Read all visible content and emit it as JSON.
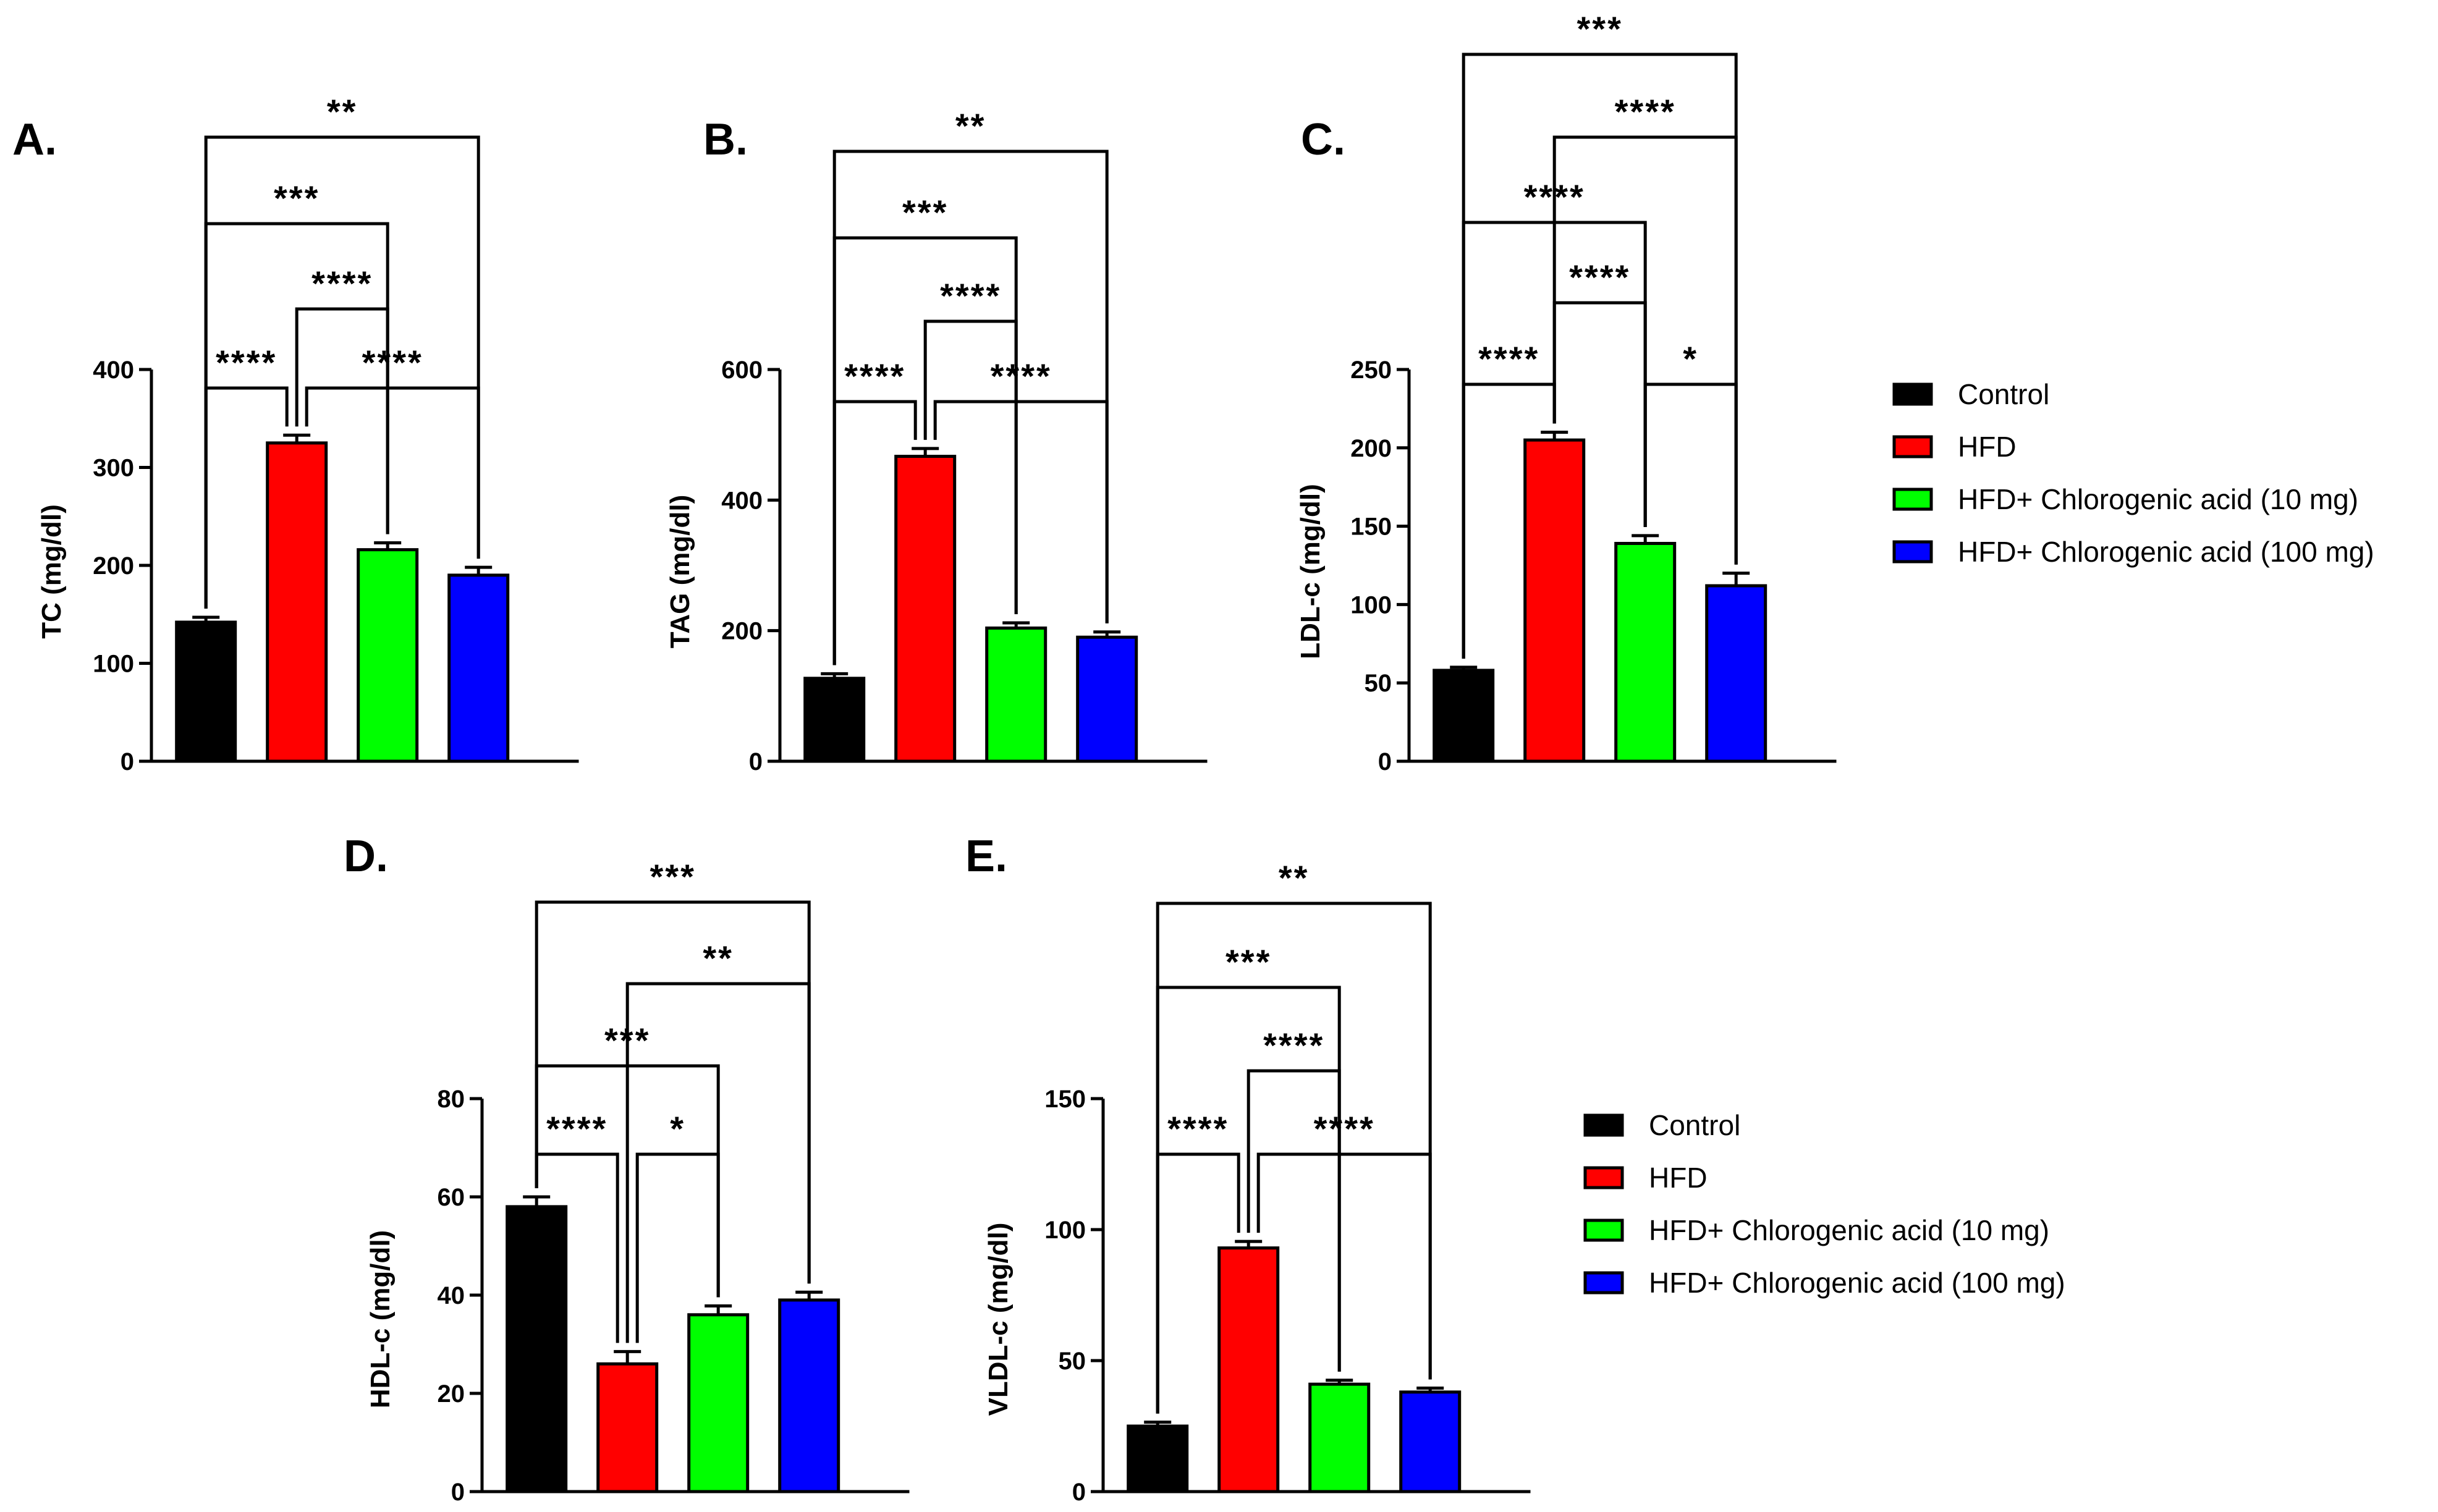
{
  "figure": {
    "legends": [
      {
        "entries": [
          "Control",
          "HFD",
          "HFD+ Chlorogenic acid (10 mg)",
          "HFD+ Chlorogenic acid (100 mg)"
        ]
      },
      {
        "entries": [
          "Control",
          "HFD",
          "HFD+ Chlorogenic acid (10 mg)",
          "HFD+ Chlorogenic acid (100 mg)"
        ]
      }
    ]
  },
  "colors": {
    "Control": "#000000",
    "HFD": "#ff0000",
    "HFD+ Chlorogenic acid (10 mg)": "#00ff00",
    "HFD+ Chlorogenic acid (100 mg)": "#0000ff"
  },
  "chart_data": [
    {
      "type": "bar",
      "panel": "A.",
      "ylabel": "TC (mg/dl)",
      "ylim": [
        0,
        400
      ],
      "yticks": [
        0,
        100,
        200,
        300,
        400
      ],
      "categories": [
        "Control",
        "HFD",
        "HFD+ Chlorogenic acid (10 mg)",
        "HFD+ Chlorogenic acid (100 mg)"
      ],
      "values": [
        142,
        325,
        216,
        190
      ],
      "errors": [
        5,
        8,
        7,
        8
      ],
      "significance": [
        {
          "from": 0,
          "to": 1,
          "label": "****"
        },
        {
          "from": 1,
          "to": 3,
          "label": "****"
        },
        {
          "from": 1,
          "to": 2,
          "label": "****"
        },
        {
          "from": 0,
          "to": 2,
          "label": "***"
        },
        {
          "from": 0,
          "to": 3,
          "label": "**"
        }
      ]
    },
    {
      "type": "bar",
      "panel": "B.",
      "ylabel": "TAG (mg/dl)",
      "ylim": [
        0,
        600
      ],
      "yticks": [
        0,
        200,
        400,
        600
      ],
      "categories": [
        "Control",
        "HFD",
        "HFD+ Chlorogenic acid (10 mg)",
        "HFD+ Chlorogenic acid (100 mg)"
      ],
      "values": [
        127,
        467,
        204,
        190
      ],
      "errors": [
        7,
        12,
        8,
        8
      ],
      "significance": [
        {
          "from": 0,
          "to": 1,
          "label": "****"
        },
        {
          "from": 1,
          "to": 3,
          "label": "****"
        },
        {
          "from": 1,
          "to": 2,
          "label": "****"
        },
        {
          "from": 0,
          "to": 2,
          "label": "***"
        },
        {
          "from": 0,
          "to": 3,
          "label": "**"
        }
      ]
    },
    {
      "type": "bar",
      "panel": "C.",
      "ylabel": "LDL-c (mg/dl)",
      "ylim": [
        0,
        250
      ],
      "yticks": [
        0,
        50,
        100,
        150,
        200,
        250
      ],
      "categories": [
        "Control",
        "HFD",
        "HFD+ Chlorogenic acid (10 mg)",
        "HFD+ Chlorogenic acid (100 mg)"
      ],
      "values": [
        58,
        205,
        139,
        112
      ],
      "errors": [
        2,
        5,
        5,
        8
      ],
      "significance": [
        {
          "from": 0,
          "to": 1,
          "label": "****"
        },
        {
          "from": 2,
          "to": 3,
          "label": "*"
        },
        {
          "from": 1,
          "to": 2,
          "label": "****"
        },
        {
          "from": 0,
          "to": 2,
          "label": "****"
        },
        {
          "from": 1,
          "to": 3,
          "label": "****"
        },
        {
          "from": 0,
          "to": 3,
          "label": "***"
        }
      ]
    },
    {
      "type": "bar",
      "panel": "D.",
      "ylabel": "HDL-c (mg/dl)",
      "ylim": [
        0,
        80
      ],
      "yticks": [
        0,
        20,
        40,
        60,
        80
      ],
      "categories": [
        "Control",
        "HFD",
        "HFD+ Chlorogenic acid (10 mg)",
        "HFD+ Chlorogenic acid (100 mg)"
      ],
      "values": [
        58,
        26,
        36,
        39
      ],
      "errors": [
        2,
        2.5,
        1.8,
        1.6
      ],
      "significance": [
        {
          "from": 0,
          "to": 1,
          "label": "****"
        },
        {
          "from": 1,
          "to": 2,
          "label": "*"
        },
        {
          "from": 0,
          "to": 2,
          "label": "***"
        },
        {
          "from": 1,
          "to": 3,
          "label": "**"
        },
        {
          "from": 0,
          "to": 3,
          "label": "***"
        }
      ]
    },
    {
      "type": "bar",
      "panel": "E.",
      "ylabel": "VLDL-c (mg/dl)",
      "ylim": [
        0,
        150
      ],
      "yticks": [
        0,
        50,
        100,
        150
      ],
      "categories": [
        "Control",
        "HFD",
        "HFD+ Chlorogenic acid (10 mg)",
        "HFD+ Chlorogenic acid (100 mg)"
      ],
      "values": [
        25,
        93,
        41,
        38
      ],
      "errors": [
        1.5,
        2.5,
        1.5,
        1.5
      ],
      "significance": [
        {
          "from": 0,
          "to": 1,
          "label": "****"
        },
        {
          "from": 1,
          "to": 3,
          "label": "****"
        },
        {
          "from": 1,
          "to": 2,
          "label": "****"
        },
        {
          "from": 0,
          "to": 2,
          "label": "***"
        },
        {
          "from": 0,
          "to": 3,
          "label": "**"
        }
      ]
    }
  ]
}
